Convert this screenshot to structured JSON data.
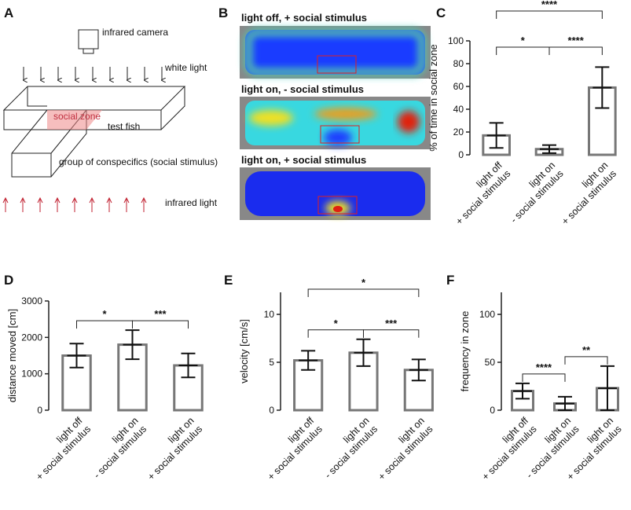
{
  "panel_labels": [
    "A",
    "B",
    "C",
    "D",
    "E",
    "F"
  ],
  "diagram": {
    "camera": "infrared camera",
    "top_light": "white light",
    "zone": "social zone",
    "fish": "test fish",
    "stimulus": "group of conspecifics (social stimulus)",
    "bottom_light": "infrared light"
  },
  "heatmaps": [
    "light off, + social stimulus",
    "light on, - social stimulus",
    "light on, + social stimulus"
  ],
  "chart_data": [
    {
      "type": "bar",
      "ylabel": "% of time in social zone",
      "categories": [
        "light off\n+ social stimulus",
        "light on\n- social stimulus",
        "light on\n+ social stimulus"
      ],
      "values": [
        17,
        5,
        59
      ],
      "errors": [
        11,
        3.5,
        18
      ],
      "ylim": [
        0,
        100
      ],
      "yticks": [
        0,
        20,
        40,
        60,
        80,
        100
      ],
      "annotations": [
        {
          "pair": [
            0,
            1
          ],
          "text": "*"
        },
        {
          "pair": [
            1,
            2
          ],
          "text": "****"
        },
        {
          "pair": [
            0,
            2
          ],
          "text": "****"
        }
      ]
    },
    {
      "type": "bar",
      "ylabel": "distance moved [cm]",
      "categories": [
        "light off\n+ social stimulus",
        "light on\n- social stimulus",
        "light on\n+ social stimulus"
      ],
      "values": [
        1500,
        1800,
        1230
      ],
      "errors": [
        330,
        400,
        330
      ],
      "ylim": [
        0,
        3000
      ],
      "yticks": [
        0,
        1000,
        2000,
        3000
      ],
      "annotations": [
        {
          "pair": [
            0,
            1
          ],
          "text": "*"
        },
        {
          "pair": [
            1,
            2
          ],
          "text": "***"
        }
      ]
    },
    {
      "type": "bar",
      "ylabel": "velocity [cm/s]",
      "categories": [
        "light off\n+ social stimulus",
        "light on\n- social stimulus",
        "light on\n+ social stimulus"
      ],
      "values": [
        5.2,
        6.0,
        4.2
      ],
      "errors": [
        1.0,
        1.4,
        1.1
      ],
      "ylim": [
        0,
        12.3
      ],
      "yticks": [
        0,
        5,
        10
      ],
      "annotations": [
        {
          "pair": [
            0,
            1
          ],
          "text": "*"
        },
        {
          "pair": [
            1,
            2
          ],
          "text": "***"
        },
        {
          "pair": [
            0,
            2
          ],
          "text": "*"
        }
      ]
    },
    {
      "type": "bar",
      "ylabel": "frequency in zone",
      "categories": [
        "light off\n+ social stimulus",
        "light on\n- social stimulus",
        "light on\n+ social stimulus"
      ],
      "values": [
        20,
        7,
        23
      ],
      "errors": [
        8,
        7,
        23
      ],
      "ylim": [
        0,
        123
      ],
      "yticks": [
        0,
        50,
        100
      ],
      "annotations": [
        {
          "pair": [
            0,
            1
          ],
          "text": "****"
        },
        {
          "pair": [
            1,
            2
          ],
          "text": "**"
        }
      ]
    }
  ]
}
